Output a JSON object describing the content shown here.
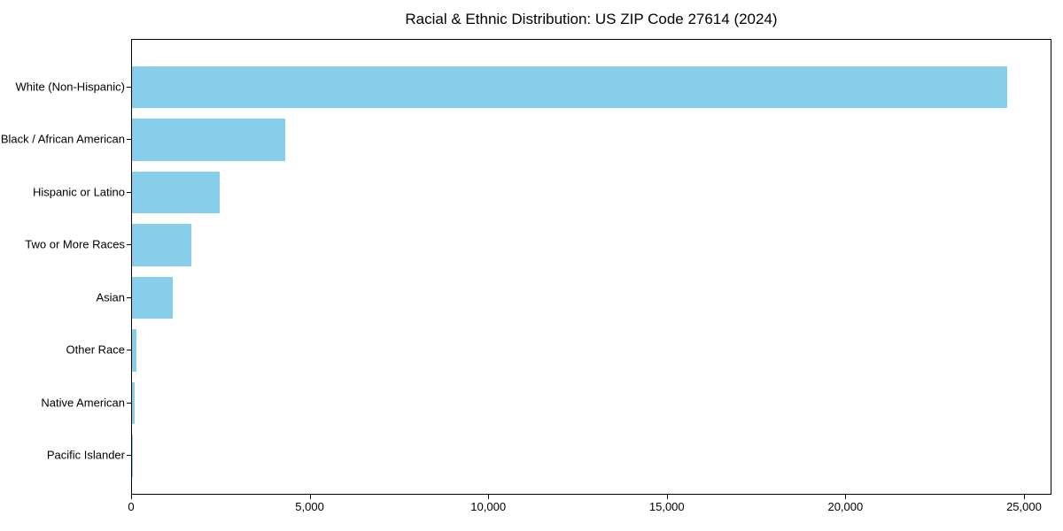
{
  "chart_data": {
    "type": "bar",
    "orientation": "horizontal",
    "title": "Racial & Ethnic Distribution: US ZIP Code 27614 (2024)",
    "categories": [
      "White (Non-Hispanic)",
      "Black / African American",
      "Hispanic or Latino",
      "Two or More Races",
      "Asian",
      "Other Race",
      "Native American",
      "Pacific Islander"
    ],
    "values": [
      24500,
      4300,
      2450,
      1650,
      1140,
      120,
      80,
      10
    ],
    "xlabel": "",
    "ylabel": "",
    "xlim": [
      0,
      25770
    ],
    "xticks": [
      0,
      5000,
      10000,
      15000,
      20000,
      25000
    ],
    "xtick_labels": [
      "0",
      "5,000",
      "10,000",
      "15,000",
      "20,000",
      "25,000"
    ],
    "bar_color": "#87CEEB",
    "background_color": "#FFFFFF",
    "axis_color": "#000000",
    "text_color": "#000000",
    "grid": false,
    "legend": "none"
  }
}
